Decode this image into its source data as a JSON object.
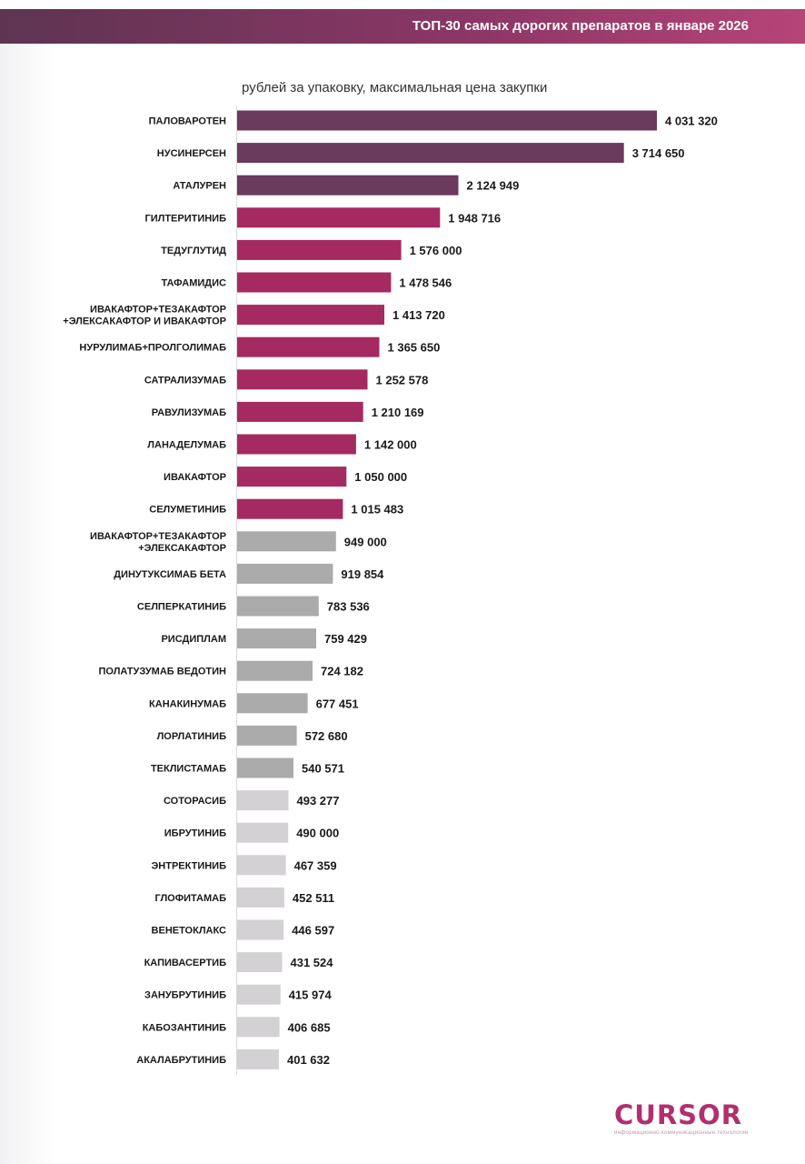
{
  "header": {
    "title": "ТОП-30 самых дорогих препаратов в январе 2026"
  },
  "chart_data": {
    "type": "bar",
    "orientation": "horizontal",
    "title": "ТОП-30 самых дорогих препаратов в январе 2026",
    "subtitle": "рублей за упаковку, максимальная цена закупки",
    "xlabel": "",
    "ylabel": "",
    "grid": false,
    "legend": "none",
    "xlim": [
      0,
      4031320
    ],
    "categories": [
      "ПАЛОВАРОТЕН",
      "НУСИНЕРСЕН",
      "АТАЛУРЕН",
      "ГИЛТЕРИТИНИБ",
      "ТЕДУГЛУТИД",
      "ТАФАМИДИС",
      "ИВАКАФТОР+ТЕЗАКАФТОР\n+ЭЛЕКСАКАФТОР И ИВАКАФТОР",
      "НУРУЛИМАБ+ПРОЛГОЛИМАБ",
      "САТРАЛИЗУМАБ",
      "РАВУЛИЗУМАБ",
      "ЛАНАДЕЛУМАБ",
      "ИВАКАФТОР",
      "СЕЛУМЕТИНИБ",
      "ИВАКАФТОР+ТЕЗАКАФТОР\n+ЭЛЕКСАКАФТОР",
      "ДИНУТУКСИМАБ БЕТА",
      "СЕЛПЕРКАТИНИБ",
      "РИСДИПЛАМ",
      "ПОЛАТУЗУМАБ ВЕДОТИН",
      "КАНАКИНУМАБ",
      "ЛОРЛАТИНИБ",
      "ТЕКЛИСТАМАБ",
      "СОТОРАСИБ",
      "ИБРУТИНИБ",
      "ЭНТРЕКТИНИБ",
      "ГЛОФИТАМАБ",
      "ВЕНЕТОКЛАКС",
      "КАПИВАСЕРТИБ",
      "ЗАНУБРУТИНИБ",
      "КАБОЗАНТИНИБ",
      "АКАЛАБРУТИНИБ"
    ],
    "values": [
      4031320,
      3714650,
      2124949,
      1948716,
      1576000,
      1478546,
      1413720,
      1365650,
      1252578,
      1210169,
      1142000,
      1050000,
      1015483,
      949000,
      919854,
      783536,
      759429,
      724182,
      677451,
      572680,
      540571,
      493277,
      490000,
      467359,
      452511,
      446597,
      431524,
      415974,
      406685,
      401632
    ],
    "value_labels": [
      "4 031 320",
      "3 714 650",
      "2 124 949",
      "1 948 716",
      "1 576 000",
      "1 478 546",
      "1 413 720",
      "1 365 650",
      "1 252 578",
      "1 210 169",
      "1 142 000",
      "1 050 000",
      "1 015 483",
      "949 000",
      "919 854",
      "783 536",
      "759 429",
      "724 182",
      "677 451",
      "572 680",
      "540 571",
      "493 277",
      "490 000",
      "467 359",
      "452 511",
      "446 597",
      "431 524",
      "415 974",
      "406 685",
      "401 632"
    ],
    "bar_colors": {
      "dark_plum": "#6b3a5d",
      "magenta": "#a52a62",
      "gray": "#ababab",
      "light_gray": "#d3d1d3"
    },
    "color_groups": [
      "dark_plum",
      "dark_plum",
      "dark_plum",
      "magenta",
      "magenta",
      "magenta",
      "magenta",
      "magenta",
      "magenta",
      "magenta",
      "magenta",
      "magenta",
      "magenta",
      "gray",
      "gray",
      "gray",
      "gray",
      "gray",
      "gray",
      "gray",
      "gray",
      "light_gray",
      "light_gray",
      "light_gray",
      "light_gray",
      "light_gray",
      "light_gray",
      "light_gray",
      "light_gray",
      "light_gray"
    ]
  },
  "logo": {
    "wordmark": "CURSOR",
    "tagline": "информационно-коммуникационные технологии"
  }
}
